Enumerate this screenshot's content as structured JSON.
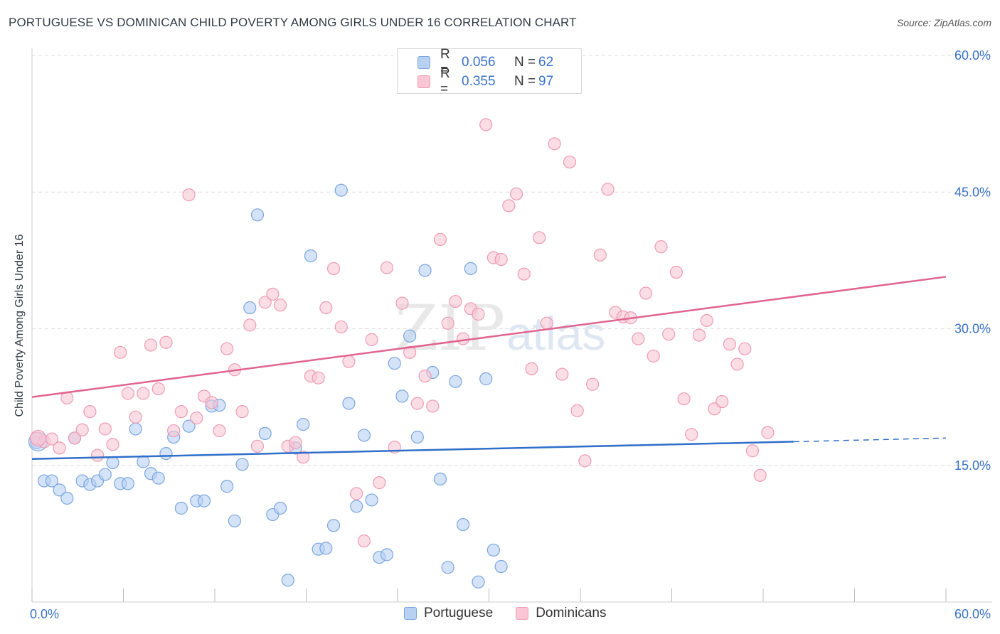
{
  "title": "PORTUGUESE VS DOMINICAN CHILD POVERTY AMONG GIRLS UNDER 16 CORRELATION CHART",
  "source": "Source: ZipAtlas.com",
  "legend": {
    "rows": [
      {
        "r_label": "R =",
        "r_value": "0.056",
        "n_label": "N =",
        "n_value": "62"
      },
      {
        "r_label": "R =",
        "r_value": "0.355",
        "n_label": "N =",
        "n_value": "97"
      }
    ]
  },
  "bottom_legend": [
    "Portuguese",
    "Dominicans"
  ],
  "colors": {
    "portuguese_fill": "#b8d1f3",
    "portuguese_stroke": "#7aa6e0",
    "portuguese_line": "#2f6fc9",
    "dominican_fill": "#f8c6d5",
    "dominican_stroke": "#ef9bb5",
    "dominican_line": "#e0648f",
    "tick_label": "#3a72c7",
    "grid": "#dddddd"
  },
  "chart_data": {
    "type": "scatter",
    "title": "PORTUGUESE VS DOMINICAN CHILD POVERTY AMONG GIRLS UNDER 16 CORRELATION CHART",
    "xlabel": "",
    "ylabel": "Child Poverty Among Girls Under 16",
    "xlim": [
      0,
      60
    ],
    "ylim": [
      0,
      60
    ],
    "x_tick_labels": [
      "0.0%",
      "60.0%"
    ],
    "y_tick_labels": [
      "15.0%",
      "30.0%",
      "45.0%",
      "60.0%"
    ],
    "y_ticks": [
      15,
      30,
      45,
      60
    ],
    "grid": true,
    "legend_position": "top-center",
    "series": [
      {
        "name": "Portuguese",
        "r": 0.056,
        "n": 62,
        "trend": {
          "x0": 0,
          "y0": 15.7,
          "x1": 50,
          "y1": 17.6,
          "dash_to_x": 60,
          "dash_to_y": 18.0
        },
        "points": [
          [
            0.3,
            17.5
          ],
          [
            0.8,
            13.3
          ],
          [
            1.3,
            13.3
          ],
          [
            1.8,
            12.3
          ],
          [
            2.3,
            11.4
          ],
          [
            2.8,
            18.0
          ],
          [
            3.3,
            13.3
          ],
          [
            3.8,
            12.9
          ],
          [
            4.3,
            13.3
          ],
          [
            4.8,
            14.0
          ],
          [
            5.3,
            15.3
          ],
          [
            5.8,
            13.0
          ],
          [
            6.3,
            13.0
          ],
          [
            6.8,
            19.0
          ],
          [
            7.3,
            15.4
          ],
          [
            7.8,
            14.1
          ],
          [
            8.3,
            13.6
          ],
          [
            8.8,
            16.3
          ],
          [
            9.3,
            18.1
          ],
          [
            9.8,
            10.3
          ],
          [
            10.3,
            19.3
          ],
          [
            10.8,
            11.1
          ],
          [
            11.3,
            11.1
          ],
          [
            11.8,
            21.5
          ],
          [
            12.3,
            21.6
          ],
          [
            12.8,
            12.7
          ],
          [
            13.3,
            8.9
          ],
          [
            13.8,
            15.1
          ],
          [
            14.3,
            32.3
          ],
          [
            14.8,
            42.5
          ],
          [
            15.3,
            18.5
          ],
          [
            15.8,
            9.6
          ],
          [
            16.3,
            10.3
          ],
          [
            16.8,
            2.4
          ],
          [
            17.3,
            16.9
          ],
          [
            17.8,
            19.5
          ],
          [
            18.3,
            38.0
          ],
          [
            18.8,
            5.8
          ],
          [
            19.3,
            5.9
          ],
          [
            19.8,
            8.4
          ],
          [
            20.3,
            45.2
          ],
          [
            20.8,
            21.8
          ],
          [
            21.3,
            10.5
          ],
          [
            21.8,
            18.3
          ],
          [
            22.3,
            11.2
          ],
          [
            22.8,
            4.9
          ],
          [
            23.3,
            5.2
          ],
          [
            23.8,
            26.2
          ],
          [
            24.3,
            22.6
          ],
          [
            24.8,
            29.2
          ],
          [
            25.3,
            18.1
          ],
          [
            25.8,
            36.4
          ],
          [
            26.3,
            25.2
          ],
          [
            26.8,
            13.5
          ],
          [
            27.3,
            3.8
          ],
          [
            27.8,
            24.2
          ],
          [
            28.3,
            8.5
          ],
          [
            28.8,
            36.6
          ],
          [
            29.3,
            2.2
          ],
          [
            29.8,
            24.5
          ],
          [
            30.3,
            5.7
          ],
          [
            30.8,
            3.9
          ]
        ]
      },
      {
        "name": "Dominicans",
        "r": 0.355,
        "n": 97,
        "trend": {
          "x0": 0,
          "y0": 22.5,
          "x1": 60,
          "y1": 35.7
        },
        "points": [
          [
            0.3,
            18.0
          ],
          [
            0.8,
            17.6
          ],
          [
            1.3,
            17.9
          ],
          [
            1.8,
            16.9
          ],
          [
            2.3,
            22.4
          ],
          [
            2.8,
            18.0
          ],
          [
            3.3,
            18.9
          ],
          [
            3.8,
            20.9
          ],
          [
            4.3,
            16.1
          ],
          [
            4.8,
            19.0
          ],
          [
            5.3,
            17.3
          ],
          [
            5.8,
            27.4
          ],
          [
            6.3,
            22.9
          ],
          [
            6.8,
            20.3
          ],
          [
            7.3,
            22.9
          ],
          [
            7.8,
            28.2
          ],
          [
            8.3,
            23.4
          ],
          [
            8.8,
            28.5
          ],
          [
            9.3,
            18.8
          ],
          [
            9.8,
            20.9
          ],
          [
            10.3,
            44.7
          ],
          [
            10.8,
            20.2
          ],
          [
            11.3,
            22.6
          ],
          [
            11.8,
            21.9
          ],
          [
            12.3,
            18.8
          ],
          [
            12.8,
            27.8
          ],
          [
            13.3,
            25.5
          ],
          [
            13.8,
            20.9
          ],
          [
            14.3,
            30.4
          ],
          [
            14.8,
            17.1
          ],
          [
            15.3,
            32.9
          ],
          [
            15.8,
            33.8
          ],
          [
            16.3,
            32.6
          ],
          [
            16.8,
            17.1
          ],
          [
            17.3,
            17.5
          ],
          [
            17.8,
            15.9
          ],
          [
            18.3,
            24.8
          ],
          [
            18.8,
            24.6
          ],
          [
            19.3,
            32.3
          ],
          [
            19.8,
            36.6
          ],
          [
            20.3,
            30.2
          ],
          [
            20.8,
            26.4
          ],
          [
            21.3,
            11.9
          ],
          [
            21.8,
            6.7
          ],
          [
            22.3,
            28.8
          ],
          [
            22.8,
            13.1
          ],
          [
            23.3,
            36.7
          ],
          [
            23.8,
            17.0
          ],
          [
            24.3,
            32.8
          ],
          [
            24.8,
            27.4
          ],
          [
            25.3,
            21.8
          ],
          [
            25.8,
            24.8
          ],
          [
            26.3,
            21.5
          ],
          [
            26.8,
            39.8
          ],
          [
            27.3,
            30.6
          ],
          [
            27.8,
            33.0
          ],
          [
            28.3,
            28.9
          ],
          [
            28.8,
            32.2
          ],
          [
            29.3,
            31.6
          ],
          [
            29.8,
            52.4
          ],
          [
            30.3,
            37.8
          ],
          [
            30.8,
            37.6
          ],
          [
            31.3,
            43.5
          ],
          [
            31.8,
            44.8
          ],
          [
            32.3,
            36.0
          ],
          [
            32.8,
            25.6
          ],
          [
            33.3,
            40.0
          ],
          [
            33.8,
            30.6
          ],
          [
            34.3,
            50.3
          ],
          [
            34.8,
            25.0
          ],
          [
            35.3,
            48.3
          ],
          [
            35.8,
            21.0
          ],
          [
            36.3,
            15.5
          ],
          [
            36.8,
            23.9
          ],
          [
            37.3,
            38.1
          ],
          [
            37.8,
            45.3
          ],
          [
            38.3,
            31.8
          ],
          [
            38.8,
            31.3
          ],
          [
            39.3,
            31.2
          ],
          [
            39.8,
            28.9
          ],
          [
            40.3,
            33.9
          ],
          [
            40.8,
            27.0
          ],
          [
            41.3,
            39.0
          ],
          [
            41.8,
            29.4
          ],
          [
            42.3,
            36.2
          ],
          [
            42.8,
            22.3
          ],
          [
            43.3,
            18.4
          ],
          [
            43.8,
            29.3
          ],
          [
            44.3,
            30.9
          ],
          [
            44.8,
            21.2
          ],
          [
            45.3,
            22.0
          ],
          [
            45.8,
            28.3
          ],
          [
            46.3,
            26.1
          ],
          [
            46.8,
            27.8
          ],
          [
            47.3,
            16.6
          ],
          [
            47.8,
            13.9
          ],
          [
            48.3,
            18.6
          ]
        ]
      }
    ]
  }
}
